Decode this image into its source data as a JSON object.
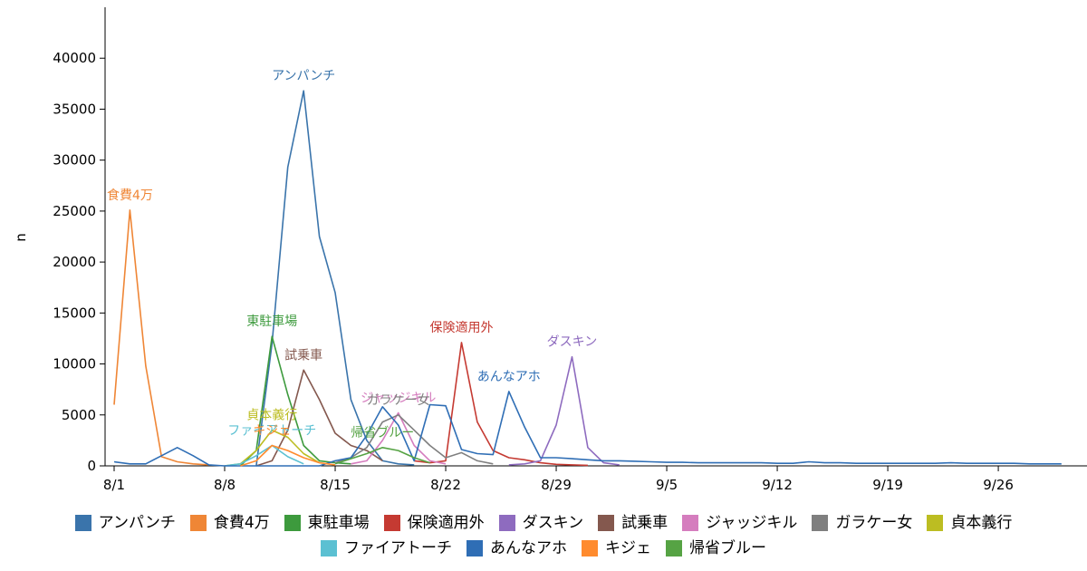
{
  "chart_data": {
    "type": "line",
    "title": "",
    "xlabel": "",
    "ylabel": "n",
    "ylim": [
      0,
      45000
    ],
    "yticks": [
      0,
      5000,
      10000,
      15000,
      20000,
      25000,
      30000,
      35000,
      40000
    ],
    "xlim": [
      "8/1",
      "9/30"
    ],
    "xticks": [
      "8/1",
      "8/8",
      "8/15",
      "8/22",
      "8/29",
      "9/5",
      "9/12",
      "9/19",
      "9/26"
    ],
    "grid": false,
    "legend_position": "bottom",
    "series": [
      {
        "name": "アンパンチ",
        "color": "#3a74ab",
        "label": "アンパンチ",
        "x": [
          "8/10",
          "8/11",
          "8/12",
          "8/13",
          "8/14",
          "8/15",
          "8/16",
          "8/17",
          "8/18",
          "8/19",
          "8/20"
        ],
        "y": [
          0,
          12000,
          29300,
          36800,
          22500,
          17000,
          6500,
          2500,
          500,
          200,
          100
        ]
      },
      {
        "name": "食費4万",
        "color": "#ef8636",
        "label": "食費4万",
        "x": [
          "8/1",
          "8/2",
          "8/3",
          "8/4",
          "8/5",
          "8/6",
          "8/7"
        ],
        "y": [
          6000,
          25100,
          9800,
          900,
          400,
          200,
          100
        ]
      },
      {
        "name": "東駐車場",
        "color": "#3d9a3d",
        "label": "東駐車場",
        "x": [
          "8/9",
          "8/10",
          "8/11",
          "8/12",
          "8/13",
          "8/14",
          "8/15",
          "8/16"
        ],
        "y": [
          0,
          1500,
          12700,
          7000,
          2000,
          500,
          300,
          200
        ]
      },
      {
        "name": "保険適用外",
        "color": "#c53a32",
        "label": "保険適用外",
        "x": [
          "8/20",
          "8/21",
          "8/22",
          "8/23",
          "8/24",
          "8/25",
          "8/26",
          "8/27",
          "8/28",
          "8/29",
          "8/30",
          "8/31"
        ],
        "y": [
          500,
          300,
          500,
          12100,
          4300,
          1500,
          800,
          600,
          300,
          150,
          100,
          50
        ]
      },
      {
        "name": "ダスキン",
        "color": "#8e6bbf",
        "label": "ダスキン",
        "x": [
          "8/26",
          "8/27",
          "8/28",
          "8/29",
          "8/30",
          "8/31",
          "9/1",
          "9/2"
        ],
        "y": [
          100,
          200,
          500,
          4000,
          10700,
          1800,
          300,
          100
        ]
      },
      {
        "name": "試乗車",
        "color": "#84584e",
        "label": "試乗車",
        "x": [
          "8/10",
          "8/11",
          "8/12",
          "8/13",
          "8/14",
          "8/15",
          "8/16",
          "8/17",
          "8/18"
        ],
        "y": [
          0,
          500,
          3500,
          9400,
          6500,
          3200,
          2000,
          1500,
          500
        ]
      },
      {
        "name": "ジャッジキル",
        "color": "#d57dbe",
        "label": "ジャッジキル",
        "x": [
          "8/16",
          "8/17",
          "8/18",
          "8/19",
          "8/20",
          "8/21",
          "8/22"
        ],
        "y": [
          200,
          500,
          2500,
          5200,
          2000,
          500,
          200
        ]
      },
      {
        "name": "ガラケー女",
        "color": "#7f7f7f",
        "label": "ガラケー女",
        "x": [
          "8/15",
          "8/16",
          "8/17",
          "8/18",
          "8/19",
          "8/20",
          "8/21",
          "8/22",
          "8/23",
          "8/24",
          "8/25"
        ],
        "y": [
          300,
          800,
          1800,
          4300,
          5000,
          3500,
          2000,
          800,
          1300,
          500,
          200
        ]
      },
      {
        "name": "貞本義行",
        "color": "#bcbd22",
        "label": "貞本義行",
        "x": [
          "8/8",
          "8/9",
          "8/10",
          "8/11",
          "8/12",
          "8/13",
          "8/14"
        ],
        "y": [
          0,
          200,
          1500,
          3500,
          2800,
          1200,
          300
        ]
      },
      {
        "name": "ファイアトーチ",
        "color": "#5bc0d2",
        "label": "ファイアトーチ",
        "x": [
          "8/8",
          "8/9",
          "8/10",
          "8/11",
          "8/12",
          "8/13"
        ],
        "y": [
          0,
          200,
          1000,
          2000,
          900,
          200
        ]
      },
      {
        "name": "あんなアホ",
        "color": "#2f6eb5",
        "label": "あんなアホ",
        "x": [
          "8/1",
          "8/2",
          "8/3",
          "8/4",
          "8/5",
          "8/6",
          "8/7",
          "8/8",
          "8/9",
          "8/10",
          "8/11",
          "8/12",
          "8/13",
          "8/14",
          "8/15",
          "8/16",
          "8/17",
          "8/18",
          "8/19",
          "8/20",
          "8/21",
          "8/22",
          "8/23",
          "8/24",
          "8/25",
          "8/26",
          "8/27",
          "8/28",
          "8/29",
          "8/30",
          "8/31",
          "9/1",
          "9/2",
          "9/3",
          "9/4",
          "9/5",
          "9/6",
          "9/7",
          "9/8",
          "9/9",
          "9/10",
          "9/11",
          "9/12",
          "9/13",
          "9/14",
          "9/15",
          "9/16",
          "9/17",
          "9/18",
          "9/19",
          "9/20",
          "9/21",
          "9/22",
          "9/23",
          "9/24",
          "9/25",
          "9/26",
          "9/27",
          "9/28",
          "9/29",
          "9/30"
        ],
        "y": [
          400,
          200,
          200,
          1000,
          1800,
          1000,
          100,
          0,
          0,
          0,
          0,
          0,
          0,
          0,
          500,
          800,
          3000,
          5800,
          4000,
          500,
          6000,
          5900,
          1600,
          1200,
          1100,
          7300,
          3800,
          800,
          800,
          700,
          600,
          500,
          500,
          450,
          400,
          350,
          350,
          300,
          300,
          300,
          300,
          300,
          250,
          250,
          400,
          300,
          300,
          250,
          250,
          250,
          250,
          250,
          250,
          300,
          250,
          250,
          250,
          250,
          200,
          200,
          200
        ]
      },
      {
        "name": "キジェ",
        "color": "#ff8b2e",
        "label": "キジェ",
        "x": [
          "8/9",
          "8/10",
          "8/11",
          "8/12",
          "8/13",
          "8/14",
          "8/15"
        ],
        "y": [
          0,
          500,
          2000,
          1500,
          800,
          300,
          100
        ]
      },
      {
        "name": "帰省ブルー",
        "color": "#56a344",
        "label": "帰省ブルー",
        "x": [
          "8/15",
          "8/16",
          "8/17",
          "8/18",
          "8/19",
          "8/20",
          "8/21"
        ],
        "y": [
          200,
          700,
          1200,
          1800,
          1500,
          800,
          300
        ]
      }
    ]
  }
}
